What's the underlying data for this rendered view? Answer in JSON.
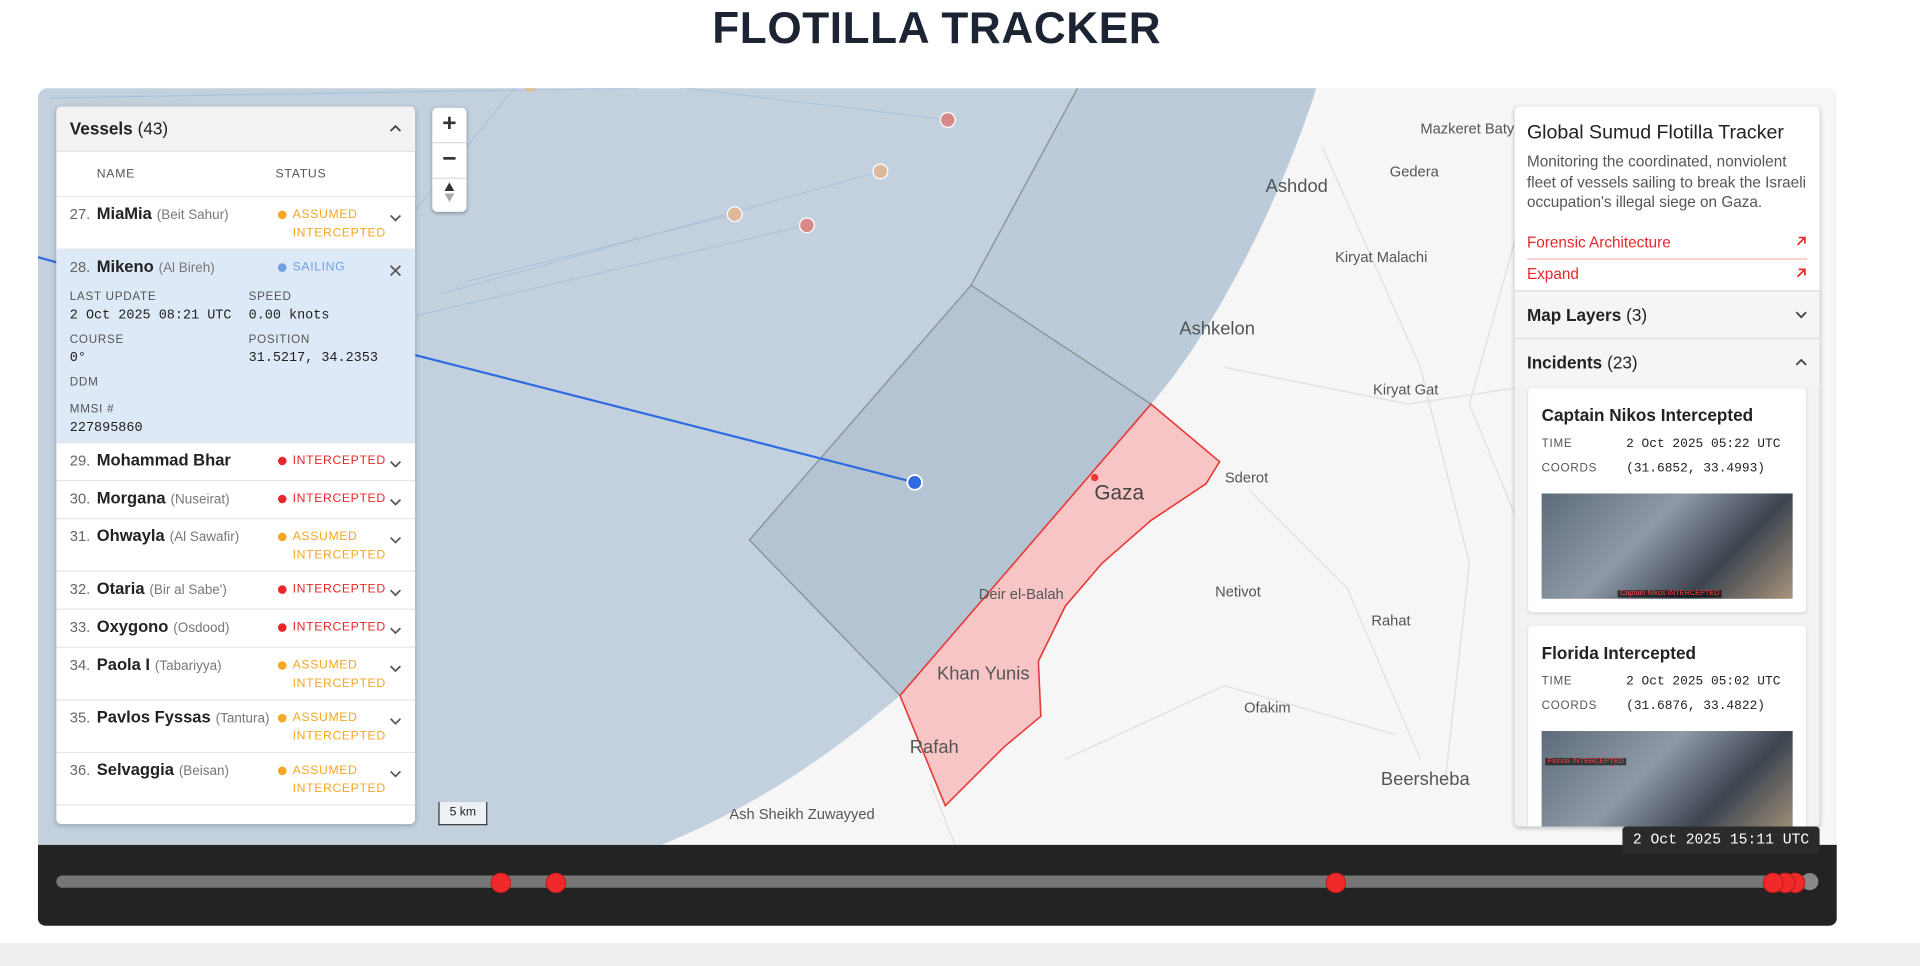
{
  "header": {
    "title": "FLOTILLA TRACKER"
  },
  "vessels_panel": {
    "title": "Vessels",
    "count": "(43)",
    "columns": [
      "NAME",
      "STATUS"
    ],
    "rows": [
      {
        "number": "27.",
        "name": "MiaMia",
        "origin": "(Beit Sahur)",
        "status": "ASSUMED INTERCEPTED",
        "color": "#f5a623"
      },
      {
        "number": "28.",
        "name": "Mikeno",
        "origin": "(Al Bireh)",
        "status": "SAILING",
        "color": "#6f9fe0",
        "details": [
          {
            "label": "LAST UPDATE",
            "value": "2 Oct 2025 08:21 UTC"
          },
          {
            "label": "SPEED",
            "value": "0.00 knots"
          },
          {
            "label": "COURSE",
            "value": "0°"
          },
          {
            "label": "POSITION",
            "value": "31.5217, 34.2353"
          },
          {
            "label": "DDM"
          },
          {
            "label": "MMSI #",
            "value": "227895860"
          }
        ]
      },
      {
        "number": "29.",
        "name": "Mohammad Bhar",
        "status": "INTERCEPTED",
        "color": "#e8262b"
      },
      {
        "number": "30.",
        "name": "Morgana",
        "origin": "(Nuseirat)",
        "status": "INTERCEPTED",
        "color": "#e8262b"
      },
      {
        "number": "31.",
        "name": "Ohwayla",
        "origin": "(Al Sawafir)",
        "status": "ASSUMED INTERCEPTED",
        "color": "#f5a623"
      },
      {
        "number": "32.",
        "name": "Otaria",
        "origin": "(Bir al Sabe')",
        "status": "INTERCEPTED",
        "color": "#e8262b"
      },
      {
        "number": "33.",
        "name": "Oxygono",
        "origin": "(Osdood)",
        "status": "INTERCEPTED",
        "color": "#e8262b"
      },
      {
        "number": "34.",
        "name": "Paola I",
        "origin": "(Tabariyya)",
        "status": "ASSUMED INTERCEPTED",
        "color": "#f5a623"
      },
      {
        "number": "35.",
        "name": "Pavlos Fyssas",
        "origin": "(Tantura)",
        "status": "ASSUMED INTERCEPTED",
        "color": "#f5a623"
      },
      {
        "number": "36.",
        "name": "Selvaggia",
        "origin": "(Beisan)",
        "status": "ASSUMED INTERCEPTED",
        "color": "#f5a623"
      }
    ]
  },
  "map": {
    "zoom": [
      "+",
      "−"
    ],
    "scale": "5 km",
    "labels": [
      "Mazkeret Batya",
      "Gedera",
      "Ashdod",
      "Kiryat Malachi",
      "Ashkelon",
      "Kiryat Gat",
      "Sderot",
      "Gaza",
      "Deir el-Balah",
      "Netivot",
      "Rahat",
      "Khan Yunis",
      "Ofakim",
      "Rafah",
      "Beersheba",
      "Ash Sheikh Zuwayyed"
    ]
  },
  "info_panel": {
    "title": "Global Sumud Flotilla Tracker",
    "description": "Monitoring the coordinated, nonviolent fleet of vessels sailing to break the Israeli occupation's illegal siege on Gaza.",
    "links": [
      "Forensic Architecture",
      "Expand"
    ],
    "map_layers": {
      "title": "Map Layers",
      "count": "(3)"
    },
    "incidents": {
      "title": "Incidents",
      "count": "(23)",
      "items": [
        {
          "title": "Captain Nikos Intercepted",
          "time_label": "TIME",
          "time": "2 Oct 2025 05:22 UTC",
          "coords_label": "COORDS",
          "coords": "(31.6852, 33.4993)",
          "image_caption": "Captain Nikos INTERCEPTED"
        },
        {
          "title": "Florida Intercepted",
          "time_label": "TIME",
          "time": "2 Oct 2025 05:02 UTC",
          "coords_label": "COORDS",
          "coords": "(31.6876, 33.4822)",
          "image_caption": "Florida INTERCEPTED"
        }
      ]
    }
  },
  "timeline": {
    "current_time": "2 Oct 2025 15:11 UTC"
  }
}
